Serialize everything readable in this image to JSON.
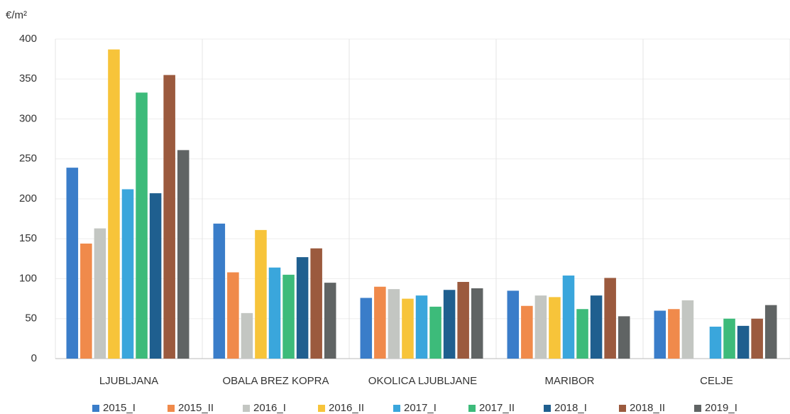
{
  "chart_data": {
    "type": "bar",
    "ylabel": "€/m²",
    "categories": [
      "LJUBLJANA",
      "OBALA BREZ KOPRA",
      "OKOLICA LJUBLJANE",
      "MARIBOR",
      "CELJE"
    ],
    "series": [
      {
        "name": "2015_I",
        "color": "#3a7dc9",
        "values": [
          239,
          169,
          76,
          85,
          60
        ]
      },
      {
        "name": "2015_II",
        "color": "#f08a4b",
        "values": [
          144,
          108,
          90,
          66,
          62
        ]
      },
      {
        "name": "2016_I",
        "color": "#c3c6c2",
        "values": [
          163,
          57,
          87,
          79,
          73
        ]
      },
      {
        "name": "2016_II",
        "color": "#f7c43a",
        "values": [
          387,
          161,
          75,
          77,
          null
        ]
      },
      {
        "name": "2017_I",
        "color": "#3aa6dc",
        "values": [
          212,
          114,
          79,
          104,
          40
        ]
      },
      {
        "name": "2017_II",
        "color": "#3dbb7a",
        "values": [
          333,
          105,
          65,
          62,
          50
        ]
      },
      {
        "name": "2018_I",
        "color": "#1f5f8f",
        "values": [
          207,
          127,
          86,
          79,
          41
        ]
      },
      {
        "name": "2018_II",
        "color": "#9b5a3e",
        "values": [
          355,
          138,
          96,
          101,
          50
        ]
      },
      {
        "name": "2019_I",
        "color": "#606464",
        "values": [
          261,
          95,
          88,
          53,
          67
        ]
      }
    ],
    "ylim": [
      0,
      400
    ],
    "yticks": [
      0,
      50,
      100,
      150,
      200,
      250,
      300,
      350,
      400
    ],
    "grid": true,
    "legend": "bottom"
  }
}
